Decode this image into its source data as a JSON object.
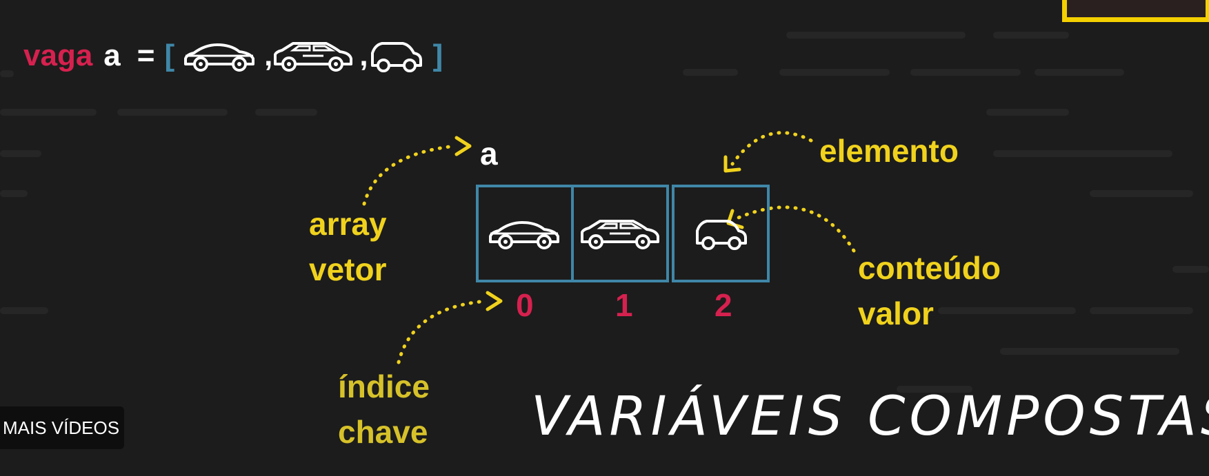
{
  "code_line": {
    "keyword": "vaga",
    "var_name": "a",
    "equals": "=",
    "open_bracket": "[",
    "comma_1": ",",
    "comma_2": ",",
    "close_bracket": "]"
  },
  "diagram": {
    "array_name": "a",
    "indices": [
      "0",
      "1",
      "2"
    ],
    "labels": {
      "array": "array",
      "vetor": "vetor",
      "indice": "índice",
      "chave": "chave",
      "elemento": "elemento",
      "conteudo": "conteúdo",
      "valor": "valor"
    },
    "elements": [
      "sedan-car-icon",
      "hatchback-car-icon",
      "small-car-icon"
    ]
  },
  "overlay": {
    "more_videos": "MAIS VÍDEOS"
  },
  "handwritten_title": "VARIÁVEIS COMPOSTAS",
  "colors": {
    "background": "#1c1c1c",
    "keyword": "#d6214f",
    "annotation": "#f0d21d",
    "array_border": "#3f87a8",
    "index": "#d6214f",
    "webcam_frame": "#f5d000"
  }
}
